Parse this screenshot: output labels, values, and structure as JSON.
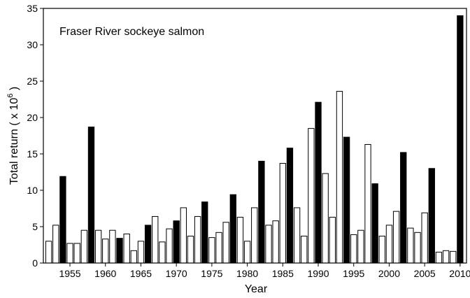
{
  "chart_data": {
    "type": "bar",
    "title": "Fraser River sockeye salmon",
    "x_label": "Year",
    "y_label": "Total return ( x 10",
    "y_label_sup": "6",
    "y_label_end": " )",
    "x": [
      1952,
      1953,
      1954,
      1955,
      1956,
      1957,
      1958,
      1959,
      1960,
      1961,
      1962,
      1963,
      1964,
      1965,
      1966,
      1967,
      1968,
      1969,
      1970,
      1971,
      1972,
      1973,
      1974,
      1975,
      1976,
      1977,
      1978,
      1979,
      1980,
      1981,
      1982,
      1983,
      1984,
      1985,
      1986,
      1987,
      1988,
      1989,
      1990,
      1991,
      1992,
      1993,
      1994,
      1995,
      1996,
      1997,
      1998,
      1999,
      2000,
      2001,
      2002,
      2003,
      2004,
      2005,
      2006,
      2007,
      2008,
      2009,
      2010
    ],
    "values": [
      3.0,
      5.2,
      11.9,
      2.7,
      2.7,
      4.5,
      18.7,
      4.5,
      3.3,
      4.5,
      3.4,
      4.0,
      1.7,
      3.0,
      5.2,
      6.4,
      2.9,
      4.7,
      5.8,
      7.6,
      3.7,
      6.4,
      8.4,
      3.5,
      4.2,
      5.6,
      9.4,
      6.3,
      3.0,
      7.6,
      14.0,
      5.2,
      5.8,
      13.7,
      15.8,
      7.6,
      3.7,
      18.5,
      22.1,
      12.3,
      6.3,
      23.6,
      17.3,
      3.9,
      4.5,
      16.3,
      10.9,
      3.7,
      5.2,
      7.1,
      15.2,
      4.8,
      4.2,
      6.9,
      13.0,
      1.5,
      1.7,
      1.6,
      34.0
    ],
    "colors": [
      "#ffffff",
      "#ffffff",
      "#000000",
      "#ffffff",
      "#ffffff",
      "#ffffff",
      "#000000",
      "#ffffff",
      "#ffffff",
      "#ffffff",
      "#000000",
      "#ffffff",
      "#ffffff",
      "#ffffff",
      "#000000",
      "#ffffff",
      "#ffffff",
      "#ffffff",
      "#000000",
      "#ffffff",
      "#ffffff",
      "#ffffff",
      "#000000",
      "#ffffff",
      "#ffffff",
      "#ffffff",
      "#000000",
      "#ffffff",
      "#ffffff",
      "#ffffff",
      "#000000",
      "#ffffff",
      "#ffffff",
      "#ffffff",
      "#000000",
      "#ffffff",
      "#ffffff",
      "#ffffff",
      "#000000",
      "#ffffff",
      "#ffffff",
      "#ffffff",
      "#000000",
      "#ffffff",
      "#ffffff",
      "#ffffff",
      "#000000",
      "#ffffff",
      "#ffffff",
      "#ffffff",
      "#000000",
      "#ffffff",
      "#ffffff",
      "#ffffff",
      "#000000",
      "#ffffff",
      "#ffffff",
      "#ffffff",
      "#000000"
    ],
    "xlim": [
      1951.25,
      2010.9
    ],
    "xticks": [
      1955,
      1960,
      1965,
      1970,
      1975,
      1980,
      1985,
      1990,
      1995,
      2000,
      2005,
      2010
    ],
    "ylim": [
      0,
      35
    ],
    "yticks": [
      0,
      5,
      10,
      15,
      20,
      25,
      30,
      35
    ]
  }
}
